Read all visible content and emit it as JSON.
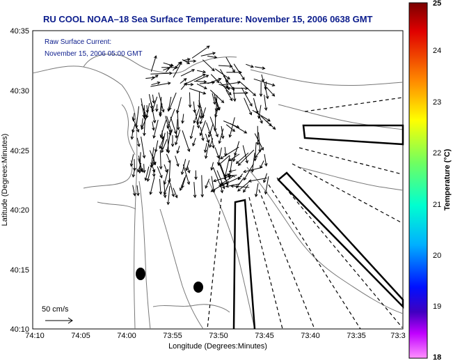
{
  "title": "RU COOL  NOAA–18  Sea Surface Temperature:  November 15, 2006 0638 GMT",
  "legend": {
    "line1": "Raw Surface Current:",
    "line2": "November 15, 2006 05:00 GMT"
  },
  "scale_label": "50 cm/s",
  "axes": {
    "xlabel": "Longitude (Degrees:Minutes)",
    "ylabel": "Latitude (Degrees:Minutes)",
    "xticks": [
      "74:10",
      "74:05",
      "74:00",
      "73:55",
      "73:50",
      "73:45",
      "73:40",
      "73:35",
      "73:3"
    ],
    "yticks": [
      "40:35",
      "40:30",
      "40:25",
      "40:20",
      "40:15",
      "40:10"
    ]
  },
  "colorbar": {
    "label": "Temperature (°C)",
    "ticks": [
      "25",
      "24",
      "23",
      "22",
      "21",
      "20",
      "19",
      "18"
    ]
  }
}
